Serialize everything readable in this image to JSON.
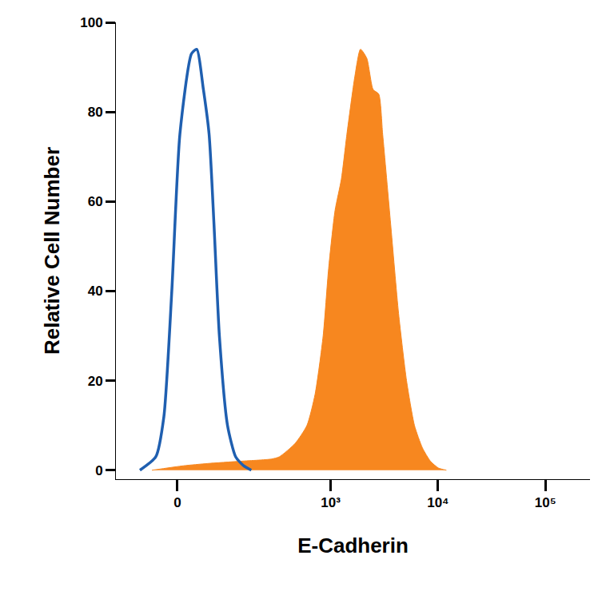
{
  "chart_data": {
    "type": "area",
    "x_label": "E-Cadherin",
    "y_label": "Relative Cell Number",
    "xlim": [
      -130,
      260000
    ],
    "xticks": [
      0,
      {
        "value": 1000,
        "label": "10³"
      },
      {
        "value": 10000,
        "label": "10⁴"
      },
      {
        "value": 100000,
        "label": "10⁵"
      }
    ],
    "ylim": [
      -2,
      100
    ],
    "yticks": [
      0,
      20,
      40,
      60,
      80,
      100
    ],
    "grid": false,
    "series": [
      {
        "type": "area",
        "color": "#f7871f",
        "x": [
          -43,
          10,
          52,
          132,
          276,
          329,
          465,
          600,
          716,
          851,
          957,
          1099,
          1259,
          1417,
          1683,
          1897,
          2172,
          2489,
          2806,
          3055,
          3623,
          4296,
          5096,
          6040,
          7160,
          8515,
          10090,
          11970
        ],
        "values": [
          0,
          1,
          1.5,
          2,
          2.5,
          3,
          6,
          10,
          17,
          30,
          45,
          58,
          65,
          75,
          88,
          94,
          92,
          85,
          84,
          75,
          55,
          35,
          20,
          10,
          5,
          2,
          0.5,
          0
        ]
      },
      {
        "type": "line",
        "color": "#1f5fb0",
        "x": [
          -67,
          -36,
          -22,
          -9,
          4,
          23,
          32,
          44,
          55,
          65,
          77,
          97,
          120,
          146,
          175
        ],
        "values": [
          0,
          3,
          12,
          40,
          75,
          93,
          94,
          85,
          75,
          55,
          30,
          10,
          3,
          1,
          0
        ]
      }
    ]
  }
}
